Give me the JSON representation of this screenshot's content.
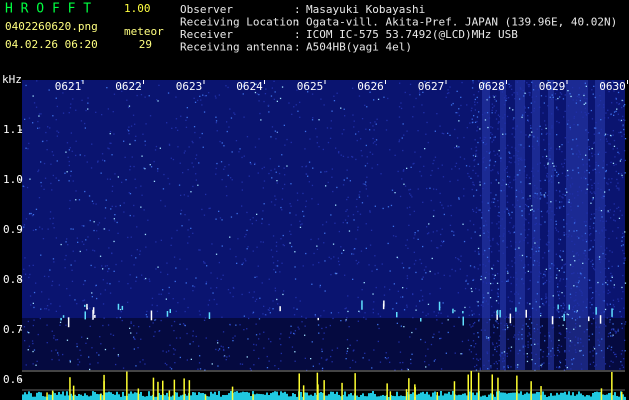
{
  "app": {
    "name": "H R O F F T",
    "version": "1.00"
  },
  "file": {
    "filename": "0402260620.png",
    "datetime": "04.02.26 06:20"
  },
  "meteor": {
    "label": "meteor",
    "count": 29
  },
  "info": {
    "separator": ":",
    "rows": [
      {
        "label": "Observer",
        "value": "Masayuki Kobayashi"
      },
      {
        "label": "Receiving Location",
        "value": "Ogata-vill. Akita-Pref. JAPAN (139.96E, 40.02N)"
      },
      {
        "label": "Receiver",
        "value": "ICOM IC-575 53.7492(@LCD)MHz USB"
      },
      {
        "label": "Receiving antenna",
        "value": "A504HB(yagi 4el)"
      }
    ]
  },
  "spectrogram": {
    "unit": "kHz",
    "time_labels": [
      "0621",
      "0622",
      "0623",
      "0624",
      "0625",
      "0626",
      "0627",
      "0628",
      "0629",
      "0630"
    ],
    "freq_labels": [
      "1.1",
      "1.0",
      "0.9",
      "0.8",
      "0.7",
      "0.6"
    ]
  }
}
